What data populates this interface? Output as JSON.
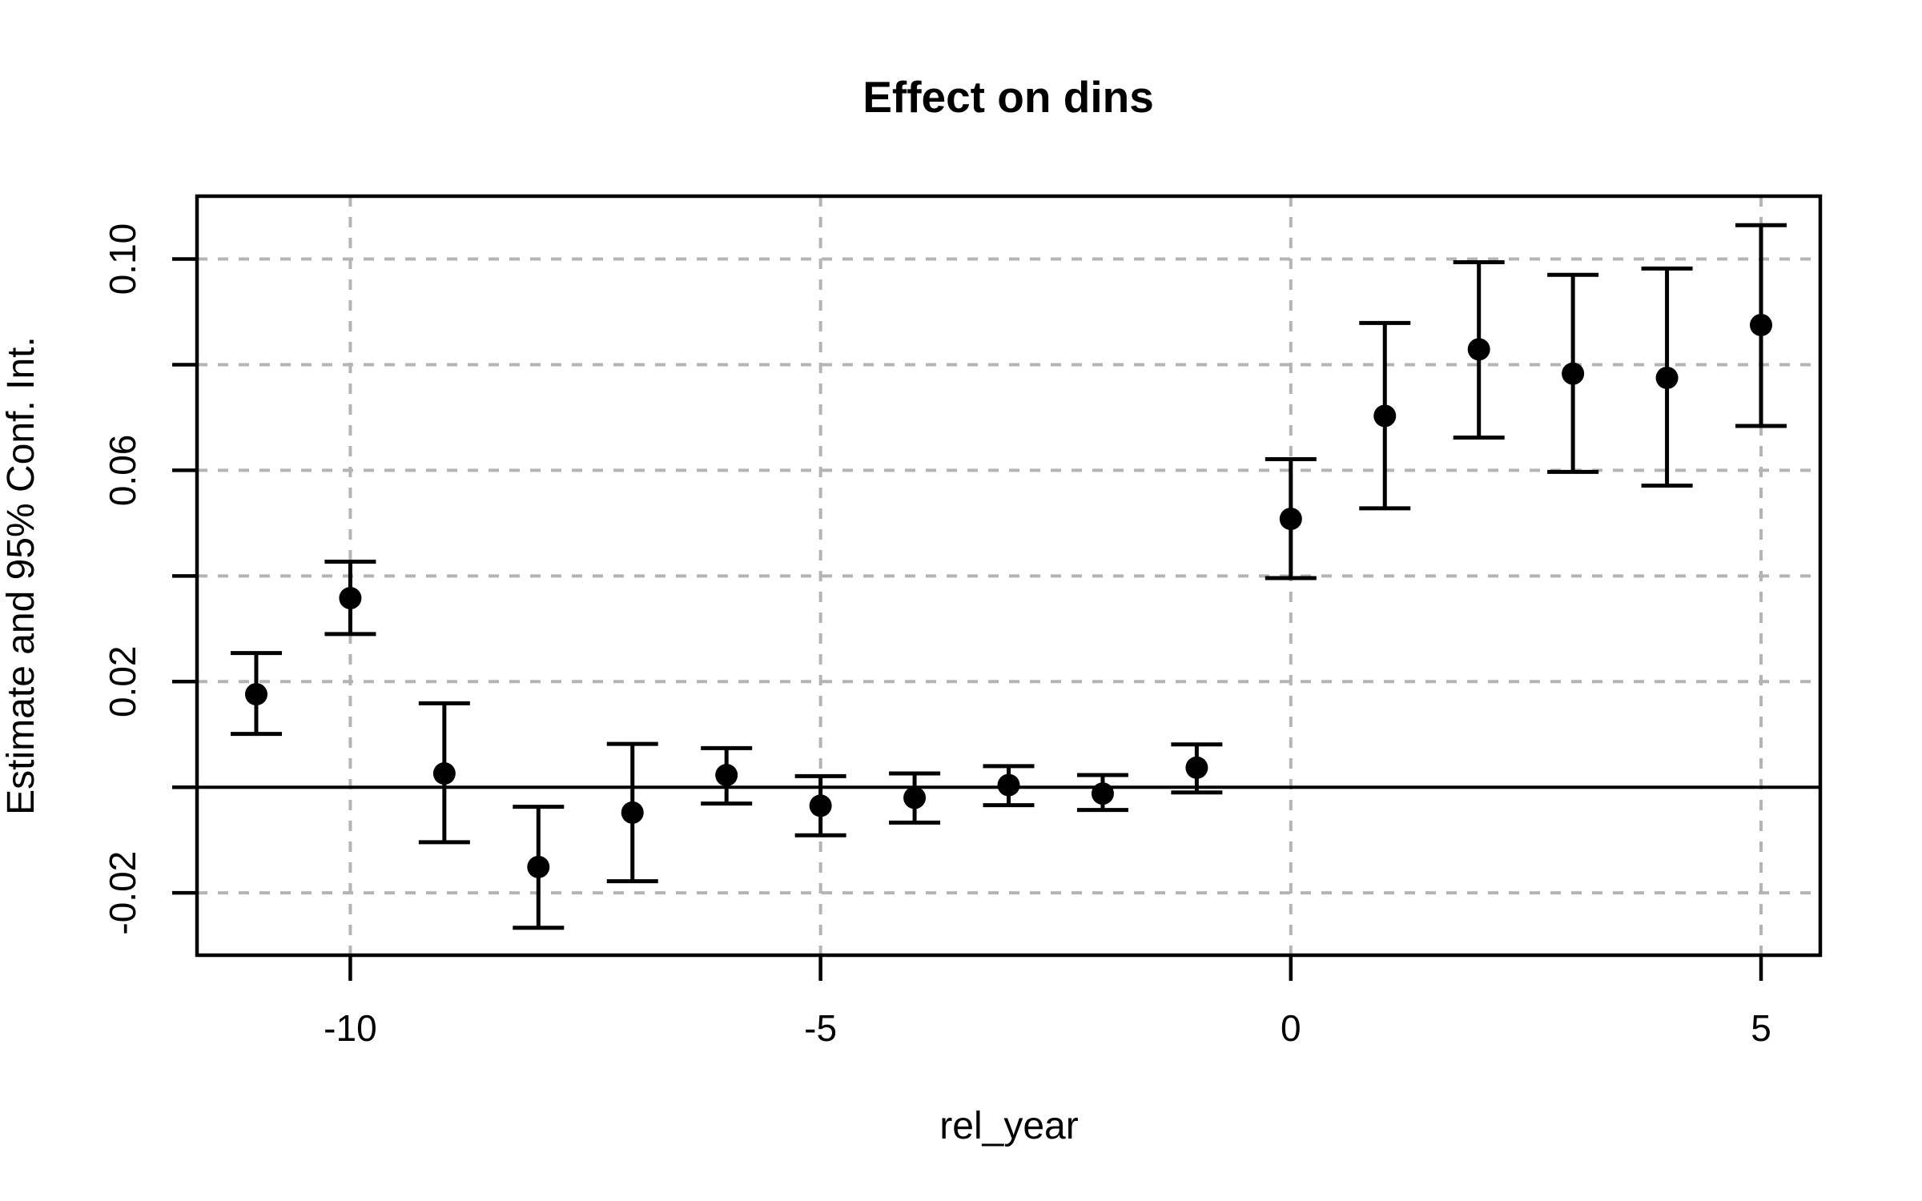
{
  "page": {
    "background": "#ffffff"
  },
  "chart_data": {
    "type": "scatter",
    "subtype": "event-study-errorbar-plot",
    "title": "Effect on dins",
    "xlabel": "rel_year",
    "ylabel": "Estimate and 95% Conf. Int.",
    "xlim": [
      -11.63,
      5.63
    ],
    "ylim": [
      -0.0318,
      0.1119
    ],
    "x_ticks": [
      {
        "value": -10,
        "label": "-10"
      },
      {
        "value": -5,
        "label": "-5"
      },
      {
        "value": 0,
        "label": "0"
      },
      {
        "value": 5,
        "label": "5"
      }
    ],
    "y_ticks": [
      {
        "value": -0.02,
        "label": "-0.02"
      },
      {
        "value": 0.0,
        "label": ""
      },
      {
        "value": 0.02,
        "label": "0.02"
      },
      {
        "value": 0.04,
        "label": ""
      },
      {
        "value": 0.06,
        "label": "0.06"
      },
      {
        "value": 0.08,
        "label": ""
      },
      {
        "value": 0.1,
        "label": "0.10"
      }
    ],
    "grid": {
      "x_values": [
        -10,
        -5,
        0,
        5
      ],
      "y_values": [
        -0.02,
        0.02,
        0.04,
        0.06,
        0.08,
        0.1
      ],
      "color": "#b4b4b4",
      "style": "dashed"
    },
    "reference_line_y": 0,
    "legend": null,
    "series": [
      {
        "name": "estimate",
        "marker": "filled-circle",
        "color": "#000000",
        "points": [
          {
            "x": -11,
            "y": 0.0176,
            "ci_low": 0.0101,
            "ci_high": 0.0254
          },
          {
            "x": -10,
            "y": 0.0358,
            "ci_low": 0.029,
            "ci_high": 0.0427
          },
          {
            "x": -9,
            "y": 0.0026,
            "ci_low": -0.0104,
            "ci_high": 0.0159
          },
          {
            "x": -8,
            "y": -0.0151,
            "ci_low": -0.0266,
            "ci_high": -0.0037
          },
          {
            "x": -7,
            "y": -0.0048,
            "ci_low": -0.0178,
            "ci_high": 0.0082
          },
          {
            "x": -6,
            "y": 0.0023,
            "ci_low": -0.0031,
            "ci_high": 0.0074
          },
          {
            "x": -5,
            "y": -0.0035,
            "ci_low": -0.0091,
            "ci_high": 0.0021
          },
          {
            "x": -4,
            "y": -0.002,
            "ci_low": -0.0067,
            "ci_high": 0.0026
          },
          {
            "x": -3,
            "y": 0.0004,
            "ci_low": -0.0034,
            "ci_high": 0.004
          },
          {
            "x": -2,
            "y": -0.0012,
            "ci_low": -0.0043,
            "ci_high": 0.0023
          },
          {
            "x": -1,
            "y": 0.0037,
            "ci_low": -0.001,
            "ci_high": 0.0081
          },
          {
            "x": 0,
            "y": 0.0508,
            "ci_low": 0.0396,
            "ci_high": 0.0621
          },
          {
            "x": 1,
            "y": 0.0703,
            "ci_low": 0.0528,
            "ci_high": 0.0879
          },
          {
            "x": 2,
            "y": 0.0829,
            "ci_low": 0.0662,
            "ci_high": 0.0994
          },
          {
            "x": 3,
            "y": 0.0783,
            "ci_low": 0.0597,
            "ci_high": 0.097
          },
          {
            "x": 4,
            "y": 0.0775,
            "ci_low": 0.0571,
            "ci_high": 0.0982
          },
          {
            "x": 5,
            "y": 0.0875,
            "ci_low": 0.0684,
            "ci_high": 0.1064
          }
        ]
      }
    ]
  }
}
